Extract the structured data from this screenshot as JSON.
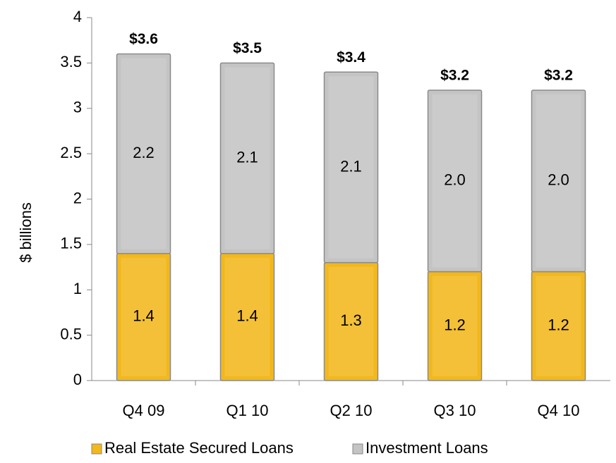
{
  "chart_data": {
    "type": "bar",
    "stacked": true,
    "y_label": "$ billions",
    "categories": [
      "Q4 09",
      "Q1 10",
      "Q2 10",
      "Q3 10",
      "Q4 10"
    ],
    "series": [
      {
        "name": "Real Estate Secured Loans",
        "color": "#f2b81c",
        "values": [
          1.4,
          1.4,
          1.3,
          1.2,
          1.2
        ]
      },
      {
        "name": "Investment Loans",
        "color": "#c4c4c4",
        "values": [
          2.2,
          2.1,
          2.1,
          2.0,
          2.0
        ],
        "value_labels": [
          "2.2",
          "2.1",
          "2.1",
          "2.0",
          "2.0"
        ]
      }
    ],
    "totals": {
      "values": [
        3.6,
        3.5,
        3.4,
        3.2,
        3.2
      ],
      "value_labels": [
        "$3.6",
        "$3.5",
        "$3.4",
        "$3.2",
        "$3.2"
      ]
    },
    "ylim": [
      0,
      4
    ],
    "yticks": [
      0,
      0.5,
      1,
      1.5,
      2,
      2.5,
      3,
      3.5,
      4
    ],
    "grid": false,
    "legend": "bottom"
  }
}
